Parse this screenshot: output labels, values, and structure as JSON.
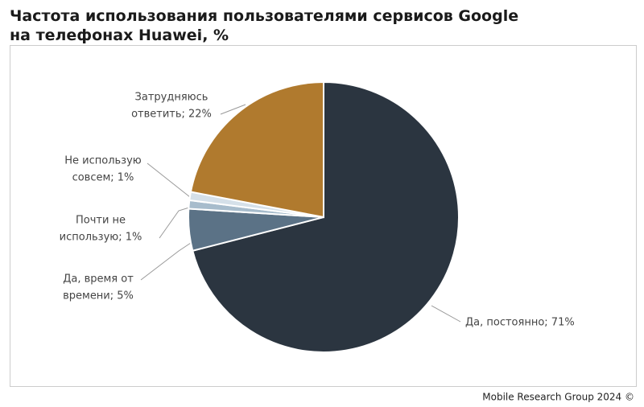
{
  "chart_data": {
    "type": "pie",
    "title": [
      "Частота использования пользователями сервисов Google",
      "на телефонах Huawei, %"
    ],
    "categories": [
      "Да, постоянно",
      "Да, время от времени",
      "Почти не использую",
      "Не использую совсем",
      "Затрудняюсь ответить"
    ],
    "values": [
      71,
      5,
      1,
      1,
      22
    ],
    "value_labels": [
      [
        "Да, постоянно; 71%"
      ],
      [
        "Да, время от",
        "времени; 5%"
      ],
      [
        "Почти не",
        "использую; 1%"
      ],
      [
        "Не использую",
        "совсем; 1%"
      ],
      [
        "Затрудняюсь",
        "ответить; 22%"
      ]
    ],
    "colors": [
      "#2b3540",
      "#5b7286",
      "#a7bccc",
      "#d5e0e9",
      "#b07a2e"
    ],
    "source": "Mobile Research Group 2024 ©"
  }
}
